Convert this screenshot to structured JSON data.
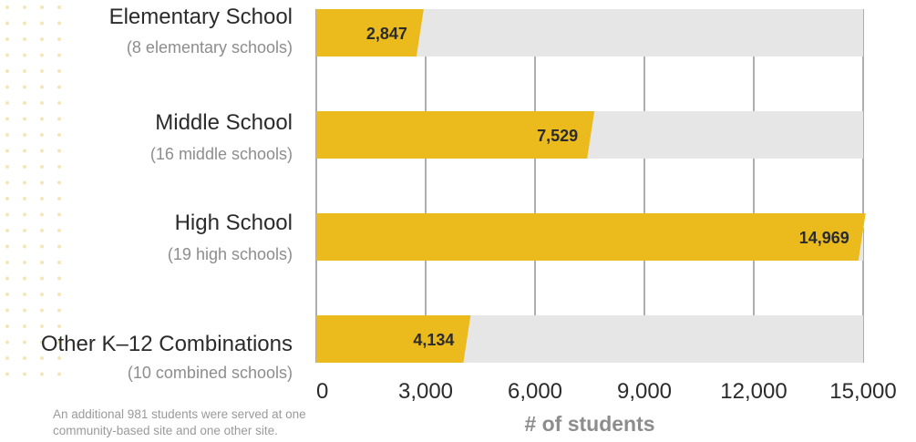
{
  "chart_data": {
    "type": "bar",
    "orientation": "horizontal",
    "categories": [
      "Elementary School",
      "Middle School",
      "High School",
      "Other K–12 Combinations"
    ],
    "subcategories": [
      "(8 elementary schools)",
      "(16 middle schools)",
      "(19 high schools)",
      "(10 combined schools)"
    ],
    "values": [
      2847,
      7529,
      14969,
      4134
    ],
    "value_labels": [
      "2,847",
      "7,529",
      "14,969",
      "4,134"
    ],
    "xlim": [
      0,
      15000
    ],
    "xticks": [
      0,
      3000,
      6000,
      9000,
      12000,
      15000
    ],
    "xtick_labels": [
      "0",
      "3,000",
      "6,000",
      "9,000",
      "12,000",
      "15,000"
    ],
    "xlabel": "# of students",
    "grid": true,
    "note": "An additional 981 students were served at one community-based site and one other site.",
    "colors": {
      "bar": "#ebbb1d",
      "track": "#e6e6e6",
      "grid": "#333333"
    }
  }
}
